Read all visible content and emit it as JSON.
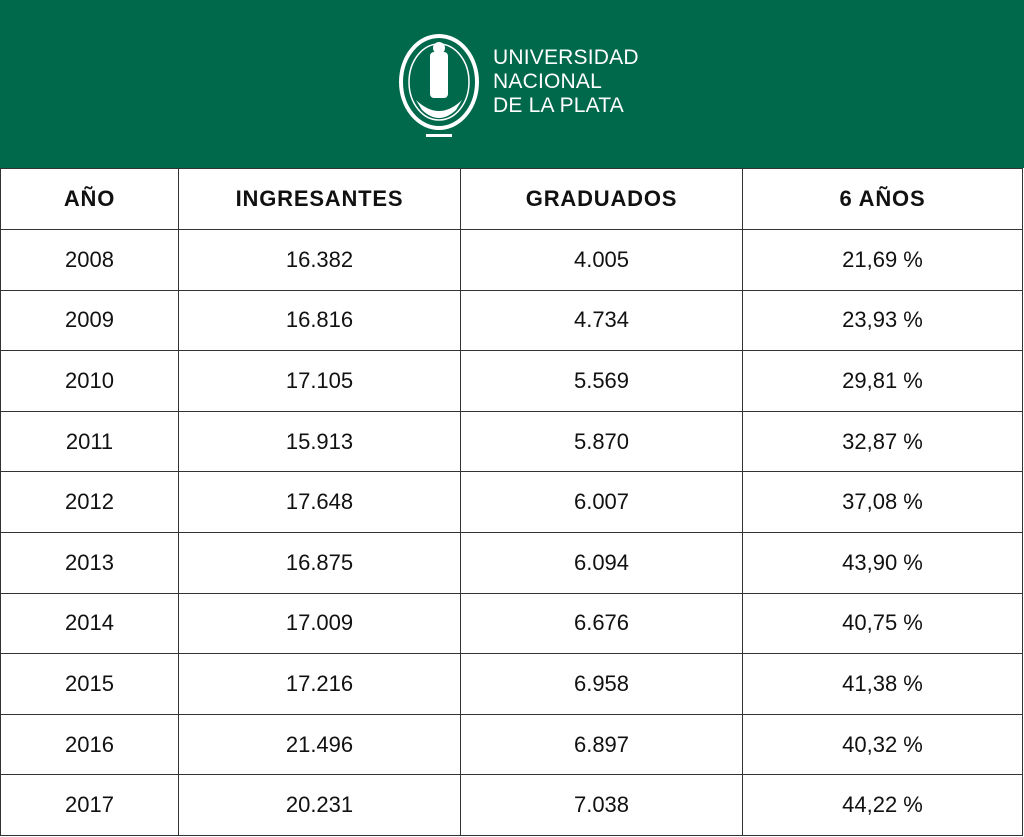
{
  "header": {
    "logo_lines": [
      "UNIVERSIDAD",
      "NACIONAL",
      "DE LA PLATA"
    ]
  },
  "table": {
    "columns": [
      "AÑO",
      "INGRESANTES",
      "GRADUADOS",
      "6 AÑOS"
    ],
    "rows": [
      [
        "2008",
        "16.382",
        "4.005",
        "21,69 %"
      ],
      [
        "2009",
        "16.816",
        "4.734",
        "23,93 %"
      ],
      [
        "2010",
        "17.105",
        "5.569",
        "29,81 %"
      ],
      [
        "2011",
        "15.913",
        "5.870",
        "32,87 %"
      ],
      [
        "2012",
        "17.648",
        "6.007",
        "37,08 %"
      ],
      [
        "2013",
        "16.875",
        "6.094",
        "43,90 %"
      ],
      [
        "2014",
        "17.009",
        "6.676",
        "40,75 %"
      ],
      [
        "2015",
        "17.216",
        "6.958",
        "41,38 %"
      ],
      [
        "2016",
        "21.496",
        "6.897",
        "40,32 %"
      ],
      [
        "2017",
        "20.231",
        "7.038",
        "44,22 %"
      ]
    ]
  }
}
